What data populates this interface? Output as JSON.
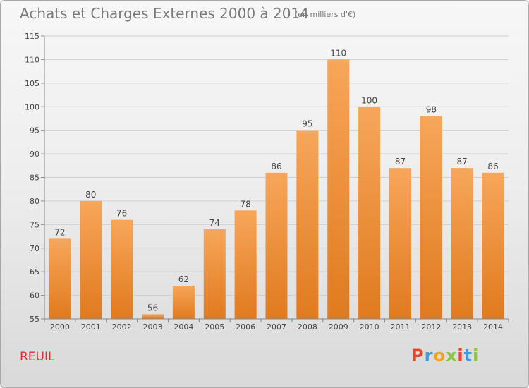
{
  "header": {
    "title": "Achats et Charges Externes 2000 à 2014",
    "subtitle": "(en milliers d'€)"
  },
  "footer": {
    "location": "REUIL",
    "logo_text": "Proxiti",
    "logo_colors": [
      "#e5472d",
      "#3f9be0",
      "#f3a11a",
      "#8cc63e",
      "#e5472d",
      "#3f9be0",
      "#8cc63e"
    ]
  },
  "colors": {
    "bar_top": "#f7a65a",
    "bar_bottom": "#e07a1e",
    "grid": "#cfcfcf",
    "axis_text": "#444444"
  },
  "chart_data": {
    "type": "bar",
    "categories": [
      "2000",
      "2001",
      "2002",
      "2003",
      "2004",
      "2005",
      "2006",
      "2007",
      "2008",
      "2009",
      "2010",
      "2011",
      "2012",
      "2013",
      "2014"
    ],
    "values": [
      72,
      80,
      76,
      56,
      62,
      74,
      78,
      86,
      95,
      110,
      100,
      87,
      98,
      87,
      86
    ],
    "ylim": [
      55,
      115
    ],
    "yticks": [
      55,
      60,
      65,
      70,
      75,
      80,
      85,
      90,
      95,
      100,
      105,
      110,
      115
    ],
    "grid": true
  }
}
